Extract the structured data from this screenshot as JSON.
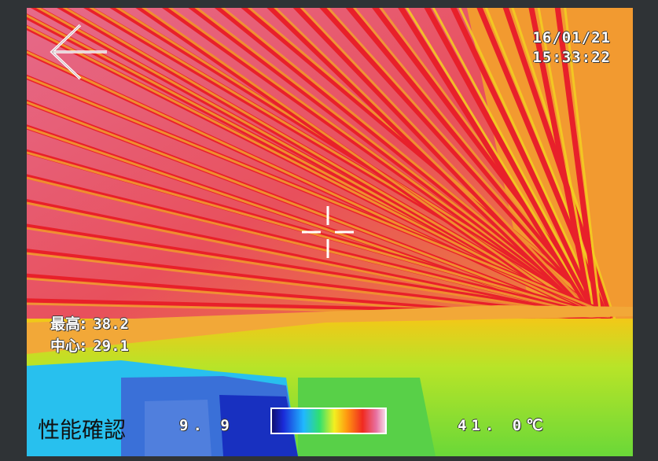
{
  "overlay": {
    "date": "16/01/21",
    "time": "15:33:22",
    "max_label": "最高:",
    "max_value": "38.2",
    "center_label": "中心:",
    "center_value": "29.1",
    "scale_min": "9. 9",
    "scale_max": "41. 0℃",
    "caption": "性能確認"
  },
  "icons": {
    "back": "arrow-left-icon",
    "crosshair": "crosshair-icon"
  },
  "colors": {
    "hot_pink": "#e8769e",
    "red": "#e8202a",
    "orange": "#f2a030",
    "yellow": "#f4e020",
    "green": "#6ad838",
    "cyan": "#28c8f0",
    "blue": "#1830c8",
    "text": "#ffffff"
  }
}
